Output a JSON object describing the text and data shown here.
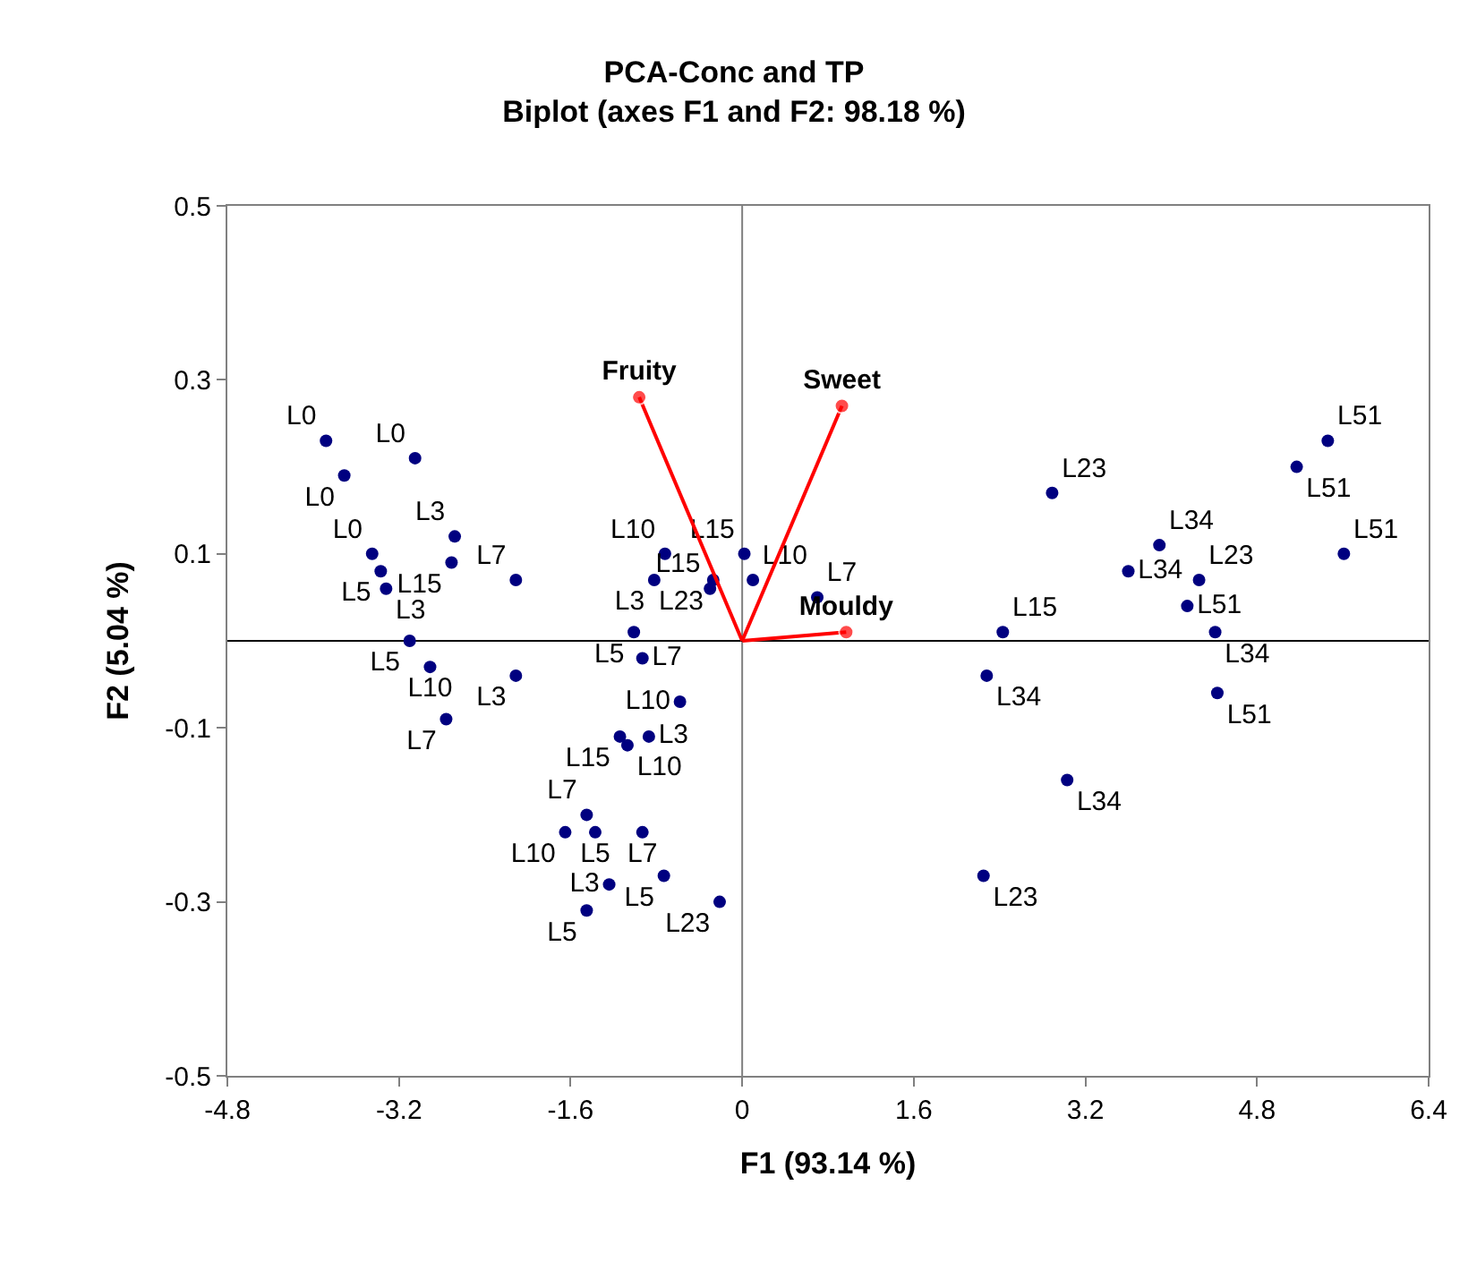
{
  "chart_data": {
    "type": "scatter",
    "title": "PCA-Conc and TP",
    "subtitle": "Biplot (axes F1 and F2: 98.18 %)",
    "xlabel": "F1 (93.14 %)",
    "ylabel": "F2 (5.04 %)",
    "xlim": [
      -4.8,
      6.4
    ],
    "xticks": [
      -4.8,
      -3.2,
      -1.6,
      0,
      1.6,
      3.2,
      4.8,
      6.4
    ],
    "ylim": [
      -0.5,
      0.5
    ],
    "yticks": [
      -0.5,
      -0.3,
      -0.1,
      0.1,
      0.3,
      0.5
    ],
    "grid": false,
    "legend": false,
    "marker": "circle",
    "ref_lines": [
      {
        "axis": "x",
        "value": 0,
        "color": "#808080"
      },
      {
        "axis": "y",
        "value": 0,
        "color": "#000000"
      }
    ],
    "series": [
      {
        "color": "#000080",
        "x": [
          -3.88,
          -3.05,
          -3.71,
          -2.68,
          -3.45,
          -2.71,
          -3.37,
          -3.32,
          -2.11,
          -0.72,
          -0.82,
          -0.27,
          -0.3,
          0.02,
          0.1,
          -1.01,
          0.7,
          -3.1,
          -0.93,
          -2.91,
          -2.11,
          -2.76,
          -0.58,
          -1.14,
          -0.87,
          -1.07,
          -1.45,
          -1.65,
          -1.37,
          -0.93,
          -0.73,
          -1.24,
          -1.45,
          -0.21,
          2.89,
          5.17,
          5.46,
          5.61,
          3.89,
          3.6,
          4.26,
          4.15,
          4.41,
          2.43,
          2.28,
          4.43,
          3.03,
          2.25
        ],
        "values": [
          0.23,
          0.21,
          0.19,
          0.12,
          0.1,
          0.09,
          0.08,
          0.06,
          0.07,
          0.1,
          0.07,
          0.07,
          0.06,
          0.1,
          0.07,
          0.01,
          0.05,
          -0.0,
          -0.02,
          -0.03,
          -0.04,
          -0.09,
          -0.07,
          -0.11,
          -0.11,
          -0.12,
          -0.2,
          -0.22,
          -0.22,
          -0.22,
          -0.27,
          -0.28,
          -0.31,
          -0.3,
          0.17,
          0.2,
          0.23,
          0.1,
          0.11,
          0.08,
          0.07,
          0.04,
          0.01,
          0.01,
          -0.04,
          -0.06,
          -0.16,
          -0.27
        ],
        "value_labels": [
          "L0",
          "L0",
          "L0",
          "L3",
          "L0",
          "L15",
          "L5",
          "L3",
          "L7",
          "L10",
          "L3",
          "L23",
          "L15",
          "L15",
          "L10",
          "L5",
          "L7",
          "L5",
          "L7",
          "L10",
          "L3",
          "L7",
          "L10",
          "L15",
          "L3",
          "L10",
          "L7",
          "L10",
          "L5",
          "L7",
          "L5",
          "L3",
          "L5",
          "L23",
          "L23",
          "L51",
          "L51",
          "L51",
          "L34",
          "L34",
          "L23",
          "L51",
          "L34",
          "L15",
          "L34",
          "L51",
          "L34",
          "L23"
        ]
      },
      {
        "type": "line",
        "name": "Fruity",
        "color": "#ff0000",
        "x": [
          0,
          -0.96
        ],
        "values": [
          0,
          0.28
        ]
      },
      {
        "type": "line",
        "name": "Sweet",
        "color": "#ff0000",
        "x": [
          0,
          0.93
        ],
        "values": [
          0,
          0.27
        ]
      },
      {
        "type": "line",
        "name": "Mouldy",
        "color": "#ff0000",
        "x": [
          0,
          0.97
        ],
        "values": [
          0,
          0.01
        ]
      }
    ]
  }
}
